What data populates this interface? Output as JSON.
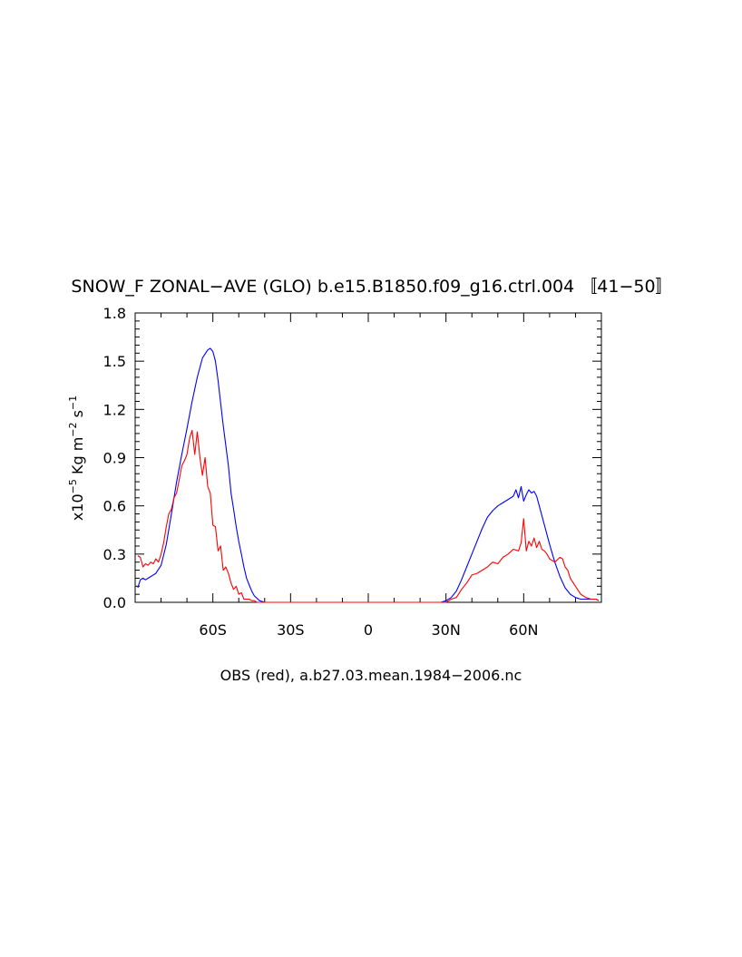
{
  "chart_data": {
    "type": "line",
    "title": "SNOW_F ZONAL−AVE (GLO) b.e15.B1850.f09_g16.ctrl.004 〚41−50〛",
    "xlabel": "OBS (red), a.b27.03.mean.1984−2006.nc",
    "ylabel_parts": {
      "prefix": "x10",
      "exp1": "−5",
      "mid1": " Kg m",
      "exp2": "−2",
      "mid2": " s",
      "exp3": "−1"
    },
    "xlim": [
      -90,
      90
    ],
    "ylim": [
      0,
      1.8
    ],
    "xticks": [
      {
        "value": -60,
        "label": "60S"
      },
      {
        "value": -30,
        "label": "30S"
      },
      {
        "value": 0,
        "label": "0"
      },
      {
        "value": 30,
        "label": "30N"
      },
      {
        "value": 60,
        "label": "60N"
      }
    ],
    "yticks": [
      {
        "value": 0,
        "label": "0.0"
      },
      {
        "value": 0.3,
        "label": "0.3"
      },
      {
        "value": 0.6,
        "label": "0.6"
      },
      {
        "value": 0.9,
        "label": "0.9"
      },
      {
        "value": 1.2,
        "label": "1.2"
      },
      {
        "value": 1.5,
        "label": "1.5"
      },
      {
        "value": 1.8,
        "label": "1.8"
      }
    ],
    "series": [
      {
        "color": "#0000ff",
        "x": [
          -89,
          -88,
          -87,
          -86,
          -85,
          -84,
          -82,
          -80,
          -78,
          -76,
          -74,
          -72,
          -70,
          -68,
          -66,
          -64,
          -62,
          -61,
          -60,
          -59,
          -58,
          -56,
          -54,
          -53,
          -52,
          -51,
          -50,
          -49,
          -48,
          -47,
          -46,
          -45,
          -44,
          -42,
          -40,
          -35,
          -20,
          0,
          20,
          28,
          30,
          32,
          34,
          36,
          38,
          40,
          42,
          44,
          46,
          48,
          50,
          52,
          54,
          56,
          57,
          58,
          59,
          60,
          61,
          62,
          63,
          64,
          65,
          66,
          68,
          70,
          72,
          74,
          76,
          78,
          80,
          82,
          84,
          86,
          88,
          89
        ],
        "y": [
          0.09,
          0.14,
          0.15,
          0.14,
          0.15,
          0.16,
          0.18,
          0.23,
          0.36,
          0.55,
          0.75,
          0.92,
          1.08,
          1.25,
          1.4,
          1.52,
          1.57,
          1.58,
          1.56,
          1.5,
          1.38,
          1.1,
          0.85,
          0.68,
          0.58,
          0.47,
          0.38,
          0.3,
          0.22,
          0.15,
          0.11,
          0.07,
          0.04,
          0.01,
          0.0,
          0.0,
          0.0,
          0.0,
          0.0,
          0.0,
          0.01,
          0.03,
          0.07,
          0.14,
          0.22,
          0.3,
          0.38,
          0.46,
          0.53,
          0.57,
          0.6,
          0.62,
          0.64,
          0.66,
          0.7,
          0.65,
          0.72,
          0.63,
          0.67,
          0.7,
          0.68,
          0.69,
          0.66,
          0.6,
          0.48,
          0.36,
          0.25,
          0.16,
          0.09,
          0.05,
          0.03,
          0.02,
          0.02,
          0.02,
          0.02,
          0.01
        ]
      },
      {
        "color": "#ff0000",
        "x": [
          -89,
          -88,
          -87,
          -86,
          -85,
          -84,
          -83,
          -82,
          -81,
          -80,
          -79,
          -78,
          -77,
          -76,
          -75,
          -74,
          -73,
          -72,
          -71,
          -70,
          -69,
          -68,
          -67,
          -66,
          -65,
          -64,
          -63,
          -62,
          -61,
          -60,
          -59,
          -58,
          -57,
          -56,
          -55,
          -54,
          -53,
          -52,
          -51,
          -50,
          -49,
          -48,
          -47,
          -46,
          -45,
          -44,
          -43,
          -42,
          -40,
          -35,
          0,
          30,
          32,
          34,
          36,
          38,
          40,
          42,
          44,
          46,
          48,
          50,
          52,
          54,
          56,
          58,
          59,
          60,
          61,
          62,
          63,
          64,
          65,
          66,
          67,
          68,
          69,
          70,
          72,
          74,
          75,
          76,
          77,
          78,
          80,
          82,
          84,
          86,
          88,
          89
        ],
        "y": [
          0.29,
          0.28,
          0.22,
          0.24,
          0.23,
          0.25,
          0.24,
          0.27,
          0.25,
          0.3,
          0.37,
          0.47,
          0.55,
          0.58,
          0.65,
          0.68,
          0.76,
          0.85,
          0.88,
          0.92,
          1.02,
          1.07,
          0.92,
          1.06,
          0.9,
          0.79,
          0.9,
          0.72,
          0.68,
          0.48,
          0.47,
          0.32,
          0.35,
          0.2,
          0.22,
          0.18,
          0.12,
          0.08,
          0.1,
          0.05,
          0.06,
          0.02,
          0.02,
          0.02,
          0.01,
          0.01,
          0.0,
          0.0,
          0.0,
          0.0,
          0.0,
          0.0,
          0.02,
          0.03,
          0.08,
          0.12,
          0.17,
          0.18,
          0.2,
          0.22,
          0.25,
          0.24,
          0.28,
          0.3,
          0.33,
          0.32,
          0.37,
          0.52,
          0.32,
          0.38,
          0.35,
          0.4,
          0.34,
          0.38,
          0.33,
          0.32,
          0.3,
          0.27,
          0.25,
          0.28,
          0.27,
          0.22,
          0.2,
          0.15,
          0.1,
          0.05,
          0.03,
          0.02,
          0.02,
          0.01
        ]
      }
    ]
  }
}
